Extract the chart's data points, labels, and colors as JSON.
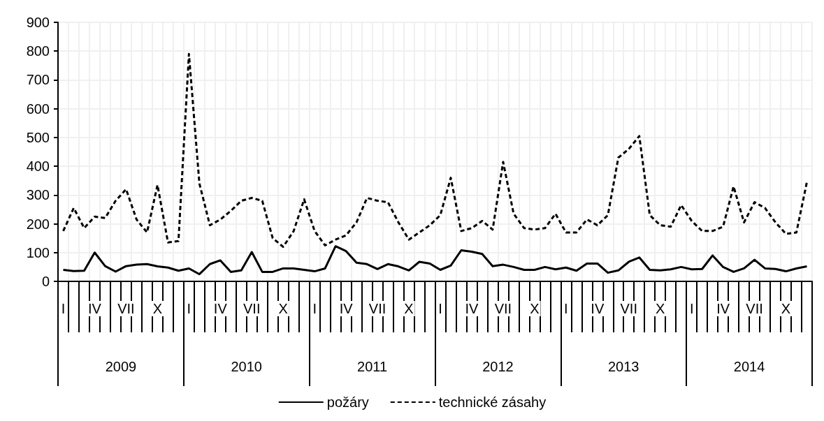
{
  "chart_data": {
    "type": "line",
    "categories": [
      "I",
      null,
      null,
      "IV",
      null,
      null,
      "VII",
      null,
      null,
      "X",
      null,
      null,
      "I",
      null,
      null,
      "IV",
      null,
      null,
      "VII",
      null,
      null,
      "X",
      null,
      null,
      "I",
      null,
      null,
      "IV",
      null,
      null,
      "VII",
      null,
      null,
      "X",
      null,
      null,
      "I",
      null,
      null,
      "IV",
      null,
      null,
      "VII",
      null,
      null,
      "X",
      null,
      null,
      "I",
      null,
      null,
      "IV",
      null,
      null,
      "VII",
      null,
      null,
      "X",
      null,
      null,
      "I",
      null,
      null,
      "IV",
      null,
      null,
      "VII",
      null,
      null,
      "X",
      null,
      null
    ],
    "annotations": [
      "2009",
      "2010",
      "2011",
      "2012",
      "2013",
      "2014"
    ],
    "series": [
      {
        "name": "požáry",
        "color": "#000000",
        "line_style": "solid",
        "values": [
          40,
          36,
          37,
          100,
          53,
          34,
          53,
          58,
          60,
          52,
          48,
          37,
          45,
          25,
          60,
          73,
          33,
          38,
          102,
          33,
          33,
          45,
          45,
          40,
          35,
          45,
          122,
          105,
          65,
          60,
          43,
          60,
          52,
          38,
          68,
          62,
          40,
          55,
          108,
          103,
          95,
          53,
          58,
          50,
          40,
          40,
          50,
          42,
          48,
          37,
          62,
          62,
          30,
          38,
          68,
          83,
          40,
          38,
          42,
          50,
          42,
          43,
          90,
          50,
          33,
          45,
          75,
          45,
          43,
          35,
          45,
          52
        ]
      },
      {
        "name": "technické zásahy",
        "color": "#000000",
        "line_style": "dashed",
        "values": [
          175,
          255,
          185,
          225,
          220,
          280,
          320,
          215,
          170,
          335,
          135,
          140,
          790,
          340,
          195,
          215,
          245,
          280,
          290,
          280,
          150,
          120,
          175,
          285,
          175,
          125,
          145,
          160,
          205,
          290,
          280,
          275,
          205,
          145,
          170,
          195,
          230,
          360,
          175,
          185,
          210,
          180,
          415,
          235,
          185,
          180,
          185,
          235,
          170,
          170,
          215,
          195,
          230,
          430,
          460,
          505,
          230,
          195,
          190,
          265,
          210,
          175,
          175,
          190,
          330,
          205,
          275,
          255,
          205,
          165,
          170,
          345
        ]
      }
    ],
    "ylim": [
      0,
      900
    ],
    "yticks": [
      0,
      100,
      200,
      300,
      400,
      500,
      600,
      700,
      800,
      900
    ],
    "grid": true,
    "legend": "bottom",
    "marker": "none"
  }
}
